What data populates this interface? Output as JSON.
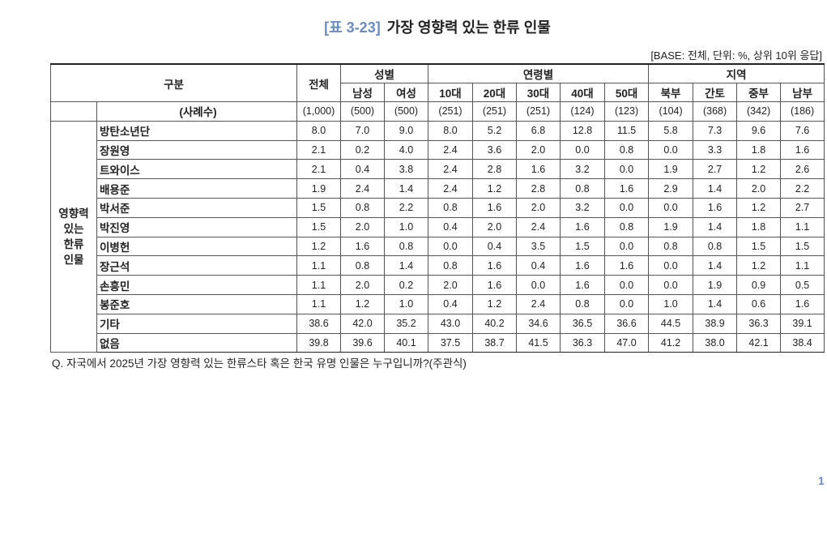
{
  "header": {
    "title_tag": "[표 3-23]",
    "title": "가장 영향력 있는 한류 인물",
    "base_note": "[BASE: 전체, 단위: %, 상위 10위 응답]"
  },
  "table": {
    "header_row1": [
      "구분",
      "전체",
      "성별",
      "연령별",
      "지역"
    ],
    "header_row2": [
      "남성",
      "여성",
      "10대",
      "20대",
      "30대",
      "40대",
      "50대",
      "북부",
      "간토",
      "중부",
      "남부"
    ],
    "row_group": "영향력 있는 한류 인물",
    "rows": [
      {
        "label": "(사례수)",
        "values": [
          "(1,000)",
          "(500)",
          "(500)",
          "(251)",
          "(251)",
          "(251)",
          "(124)",
          "(123)",
          "(104)",
          "(368)",
          "(342)",
          "(186)"
        ]
      },
      {
        "label": "방탄소년단",
        "values": [
          "8.0",
          "7.0",
          "9.0",
          "8.0",
          "5.2",
          "6.8",
          "12.8",
          "11.5",
          "5.8",
          "7.3",
          "9.6",
          "7.6"
        ]
      },
      {
        "label": "장원영",
        "values": [
          "2.1",
          "0.2",
          "4.0",
          "2.4",
          "3.6",
          "2.0",
          "0.0",
          "0.8",
          "0.0",
          "3.3",
          "1.8",
          "1.6"
        ]
      },
      {
        "label": "트와이스",
        "values": [
          "2.1",
          "0.4",
          "3.8",
          "2.4",
          "2.8",
          "1.6",
          "3.2",
          "0.0",
          "1.9",
          "2.7",
          "1.2",
          "2.6"
        ]
      },
      {
        "label": "배용준",
        "values": [
          "1.9",
          "2.4",
          "1.4",
          "2.4",
          "1.2",
          "2.8",
          "0.8",
          "1.6",
          "2.9",
          "1.4",
          "2.0",
          "2.2"
        ]
      },
      {
        "label": "박서준",
        "values": [
          "1.5",
          "0.8",
          "2.2",
          "0.8",
          "1.6",
          "2.0",
          "3.2",
          "0.0",
          "0.0",
          "1.6",
          "1.2",
          "2.7"
        ]
      },
      {
        "label": "박진영",
        "values": [
          "1.5",
          "2.0",
          "1.0",
          "0.4",
          "2.0",
          "2.4",
          "1.6",
          "0.8",
          "1.9",
          "1.4",
          "1.8",
          "1.1"
        ]
      },
      {
        "label": "이병헌",
        "values": [
          "1.2",
          "1.6",
          "0.8",
          "0.0",
          "0.4",
          "3.5",
          "1.5",
          "0.0",
          "0.8",
          "0.8",
          "1.5",
          "1.5"
        ]
      },
      {
        "label": "장근석",
        "values": [
          "1.1",
          "0.8",
          "1.4",
          "0.8",
          "1.6",
          "0.4",
          "1.6",
          "1.6",
          "0.0",
          "1.4",
          "1.2",
          "1.1"
        ]
      },
      {
        "label": "손흥민",
        "values": [
          "1.1",
          "2.0",
          "0.2",
          "2.0",
          "1.6",
          "0.0",
          "1.6",
          "0.0",
          "0.0",
          "1.9",
          "0.9",
          "0.5"
        ]
      },
      {
        "label": "봉준호",
        "values": [
          "1.1",
          "1.2",
          "1.0",
          "0.4",
          "1.2",
          "2.4",
          "0.8",
          "0.0",
          "1.0",
          "1.4",
          "0.6",
          "1.6"
        ]
      },
      {
        "label": "기타",
        "values": [
          "38.6",
          "42.0",
          "35.2",
          "43.0",
          "40.2",
          "34.6",
          "36.5",
          "36.6",
          "44.5",
          "38.9",
          "36.3",
          "39.1"
        ]
      },
      {
        "label": "없음",
        "values": [
          "39.8",
          "39.6",
          "40.1",
          "37.5",
          "38.7",
          "41.5",
          "36.3",
          "47.0",
          "41.2",
          "38.0",
          "42.1",
          "38.4"
        ]
      }
    ]
  },
  "footnote": "Q. 자국에서 2025년 가장 영향력 있는 한류스타 혹은 한국 유명 인물은 누구입니까?(주관식)",
  "page_number": "1"
}
